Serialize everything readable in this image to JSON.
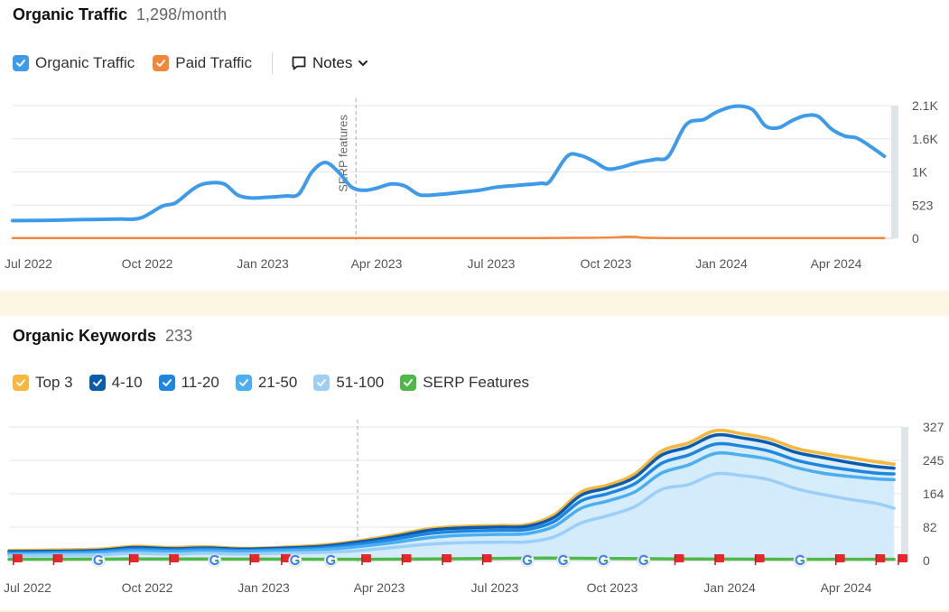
{
  "traffic": {
    "title": "Organic Traffic",
    "value": "1,298/month",
    "legend": [
      {
        "label": "Organic Traffic",
        "color": "#3d9be9",
        "checked": true
      },
      {
        "label": "Paid Traffic",
        "color": "#f4863a",
        "checked": true
      }
    ],
    "notes_label": "Notes"
  },
  "keywords": {
    "title": "Organic Keywords",
    "value": "233",
    "legend": [
      {
        "label": "Top 3",
        "color": "#f6b73c",
        "checked": true
      },
      {
        "label": "4-10",
        "color": "#0b5cad",
        "checked": true
      },
      {
        "label": "11-20",
        "color": "#1f86e0",
        "checked": true
      },
      {
        "label": "21-50",
        "color": "#4aaef0",
        "checked": true
      },
      {
        "label": "51-100",
        "color": "#9ccff7",
        "checked": true
      },
      {
        "label": "SERP Features",
        "color": "#50b848",
        "checked": true
      }
    ]
  },
  "chart_data": [
    {
      "type": "line",
      "title": "Organic Traffic",
      "x_ticks": [
        "Jul 2022",
        "Oct 2022",
        "Jan 2023",
        "Apr 2023",
        "Jul 2023",
        "Oct 2023",
        "Jan 2024",
        "Apr 2024"
      ],
      "y_ticks": [
        "0",
        "523",
        "1K",
        "1.6K",
        "2.1K"
      ],
      "ylim": [
        0,
        2100
      ],
      "grid": true,
      "annotation": {
        "label": "SERP features",
        "x": 0.39
      },
      "series": [
        {
          "name": "Organic Traffic",
          "color": "#3d9be9",
          "points": [
            [
              0,
              280
            ],
            [
              0.04,
              285
            ],
            [
              0.08,
              295
            ],
            [
              0.12,
              305
            ],
            [
              0.145,
              320
            ],
            [
              0.17,
              510
            ],
            [
              0.185,
              560
            ],
            [
              0.205,
              780
            ],
            [
              0.22,
              870
            ],
            [
              0.24,
              860
            ],
            [
              0.255,
              690
            ],
            [
              0.27,
              640
            ],
            [
              0.29,
              650
            ],
            [
              0.31,
              670
            ],
            [
              0.325,
              700
            ],
            [
              0.34,
              1050
            ],
            [
              0.355,
              1200
            ],
            [
              0.37,
              1050
            ],
            [
              0.385,
              810
            ],
            [
              0.4,
              760
            ],
            [
              0.415,
              800
            ],
            [
              0.43,
              860
            ],
            [
              0.445,
              830
            ],
            [
              0.46,
              700
            ],
            [
              0.47,
              680
            ],
            [
              0.49,
              700
            ],
            [
              0.51,
              730
            ],
            [
              0.53,
              760
            ],
            [
              0.55,
              810
            ],
            [
              0.575,
              840
            ],
            [
              0.6,
              870
            ],
            [
              0.61,
              900
            ],
            [
              0.63,
              1300
            ],
            [
              0.645,
              1310
            ],
            [
              0.66,
              1220
            ],
            [
              0.675,
              1100
            ],
            [
              0.69,
              1120
            ],
            [
              0.71,
              1200
            ],
            [
              0.73,
              1250
            ],
            [
              0.745,
              1300
            ],
            [
              0.765,
              1800
            ],
            [
              0.785,
              1880
            ],
            [
              0.8,
              2000
            ],
            [
              0.82,
              2090
            ],
            [
              0.84,
              2040
            ],
            [
              0.855,
              1780
            ],
            [
              0.87,
              1750
            ],
            [
              0.885,
              1860
            ],
            [
              0.9,
              1940
            ],
            [
              0.915,
              1930
            ],
            [
              0.93,
              1730
            ],
            [
              0.945,
              1620
            ],
            [
              0.96,
              1580
            ],
            [
              0.98,
              1400
            ],
            [
              0.99,
              1298
            ]
          ]
        },
        {
          "name": "Paid Traffic",
          "color": "#f4863a",
          "points": [
            [
              0,
              5
            ],
            [
              0.6,
              5
            ],
            [
              0.7,
              25
            ],
            [
              0.74,
              5
            ],
            [
              0.99,
              5
            ]
          ]
        }
      ]
    },
    {
      "type": "area",
      "title": "Organic Keywords",
      "x_ticks": [
        "Jul 2022",
        "Oct 2022",
        "Jan 2023",
        "Apr 2023",
        "Jul 2023",
        "Oct 2023",
        "Jan 2024",
        "Apr 2024"
      ],
      "y_ticks": [
        "0",
        "82",
        "164",
        "245",
        "327"
      ],
      "ylim": [
        0,
        327
      ],
      "grid": true,
      "annotation": {
        "label": "",
        "x": 0.39
      },
      "series": [
        {
          "name": "Top 3",
          "color": "#f6b73c",
          "points": [
            [
              0,
              25
            ],
            [
              0.05,
              26
            ],
            [
              0.1,
              28
            ],
            [
              0.14,
              35
            ],
            [
              0.18,
              32
            ],
            [
              0.22,
              34
            ],
            [
              0.26,
              30
            ],
            [
              0.3,
              32
            ],
            [
              0.35,
              38
            ],
            [
              0.39,
              48
            ],
            [
              0.43,
              62
            ],
            [
              0.47,
              78
            ],
            [
              0.51,
              84
            ],
            [
              0.55,
              86
            ],
            [
              0.58,
              88
            ],
            [
              0.61,
              112
            ],
            [
              0.64,
              168
            ],
            [
              0.67,
              185
            ],
            [
              0.7,
              212
            ],
            [
              0.73,
              268
            ],
            [
              0.76,
              288
            ],
            [
              0.79,
              318
            ],
            [
              0.82,
              310
            ],
            [
              0.85,
              298
            ],
            [
              0.88,
              275
            ],
            [
              0.91,
              262
            ],
            [
              0.94,
              252
            ],
            [
              0.97,
              242
            ],
            [
              0.99,
              236
            ]
          ]
        },
        {
          "name": "4-10",
          "color": "#0b5cad",
          "points": [
            [
              0,
              22
            ],
            [
              0.05,
              23
            ],
            [
              0.1,
              25
            ],
            [
              0.14,
              32
            ],
            [
              0.18,
              29
            ],
            [
              0.22,
              31
            ],
            [
              0.26,
              28
            ],
            [
              0.3,
              30
            ],
            [
              0.35,
              35
            ],
            [
              0.39,
              45
            ],
            [
              0.43,
              58
            ],
            [
              0.47,
              74
            ],
            [
              0.51,
              80
            ],
            [
              0.55,
              82
            ],
            [
              0.58,
              84
            ],
            [
              0.61,
              106
            ],
            [
              0.64,
              160
            ],
            [
              0.67,
              178
            ],
            [
              0.7,
              204
            ],
            [
              0.73,
              258
            ],
            [
              0.76,
              278
            ],
            [
              0.79,
              307
            ],
            [
              0.82,
              300
            ],
            [
              0.85,
              288
            ],
            [
              0.88,
              265
            ],
            [
              0.91,
              252
            ],
            [
              0.94,
              240
            ],
            [
              0.97,
              230
            ],
            [
              0.99,
              226
            ]
          ]
        },
        {
          "name": "11-20",
          "color": "#1f86e0",
          "points": [
            [
              0,
              19
            ],
            [
              0.05,
              20
            ],
            [
              0.1,
              22
            ],
            [
              0.14,
              28
            ],
            [
              0.18,
              26
            ],
            [
              0.22,
              28
            ],
            [
              0.26,
              25
            ],
            [
              0.3,
              27
            ],
            [
              0.35,
              31
            ],
            [
              0.39,
              40
            ],
            [
              0.43,
              52
            ],
            [
              0.47,
              66
            ],
            [
              0.51,
              72
            ],
            [
              0.55,
              74
            ],
            [
              0.58,
              76
            ],
            [
              0.61,
              96
            ],
            [
              0.64,
              146
            ],
            [
              0.67,
              164
            ],
            [
              0.7,
              188
            ],
            [
              0.73,
              238
            ],
            [
              0.76,
              258
            ],
            [
              0.79,
              285
            ],
            [
              0.82,
              280
            ],
            [
              0.85,
              268
            ],
            [
              0.88,
              246
            ],
            [
              0.91,
              232
            ],
            [
              0.94,
              222
            ],
            [
              0.97,
              214
            ],
            [
              0.99,
              212
            ]
          ]
        },
        {
          "name": "21-50",
          "color": "#4aaef0",
          "points": [
            [
              0,
              16
            ],
            [
              0.05,
              17
            ],
            [
              0.1,
              19
            ],
            [
              0.14,
              24
            ],
            [
              0.18,
              22
            ],
            [
              0.22,
              24
            ],
            [
              0.26,
              22
            ],
            [
              0.3,
              24
            ],
            [
              0.35,
              27
            ],
            [
              0.39,
              34
            ],
            [
              0.43,
              44
            ],
            [
              0.47,
              56
            ],
            [
              0.51,
              62
            ],
            [
              0.55,
              64
            ],
            [
              0.58,
              66
            ],
            [
              0.61,
              84
            ],
            [
              0.64,
              128
            ],
            [
              0.67,
              146
            ],
            [
              0.7,
              168
            ],
            [
              0.73,
              214
            ],
            [
              0.76,
              234
            ],
            [
              0.79,
              262
            ],
            [
              0.82,
              258
            ],
            [
              0.85,
              248
            ],
            [
              0.88,
              228
            ],
            [
              0.91,
              214
            ],
            [
              0.94,
              206
            ],
            [
              0.97,
              200
            ],
            [
              0.99,
              198
            ]
          ]
        },
        {
          "name": "51-100",
          "color": "#9ccff7",
          "points": [
            [
              0,
              12
            ],
            [
              0.05,
              13
            ],
            [
              0.1,
              14
            ],
            [
              0.14,
              18
            ],
            [
              0.18,
              16
            ],
            [
              0.22,
              18
            ],
            [
              0.26,
              16
            ],
            [
              0.3,
              18
            ],
            [
              0.35,
              20
            ],
            [
              0.39,
              24
            ],
            [
              0.43,
              32
            ],
            [
              0.47,
              40
            ],
            [
              0.51,
              44
            ],
            [
              0.55,
              45
            ],
            [
              0.58,
              46
            ],
            [
              0.61,
              58
            ],
            [
              0.64,
              92
            ],
            [
              0.67,
              110
            ],
            [
              0.7,
              132
            ],
            [
              0.73,
              174
            ],
            [
              0.76,
              186
            ],
            [
              0.79,
              212
            ],
            [
              0.82,
              208
            ],
            [
              0.85,
              198
            ],
            [
              0.88,
              176
            ],
            [
              0.91,
              162
            ],
            [
              0.94,
              150
            ],
            [
              0.97,
              140
            ],
            [
              0.99,
              128
            ]
          ]
        },
        {
          "name": "SERP Features",
          "color": "#50b848",
          "points": [
            [
              0,
              3
            ],
            [
              0.2,
              4
            ],
            [
              0.4,
              3
            ],
            [
              0.6,
              6
            ],
            [
              0.75,
              4
            ],
            [
              0.9,
              3
            ],
            [
              0.99,
              3
            ]
          ]
        }
      ],
      "markers": {
        "flags": [
          0.01,
          0.055,
          0.14,
          0.185,
          0.275,
          0.31,
          0.4,
          0.445,
          0.49,
          0.535,
          0.75,
          0.795,
          0.84,
          0.93,
          0.975,
          1.0
        ],
        "google": [
          0.1,
          0.23,
          0.32,
          0.36,
          0.58,
          0.62,
          0.665,
          0.71,
          0.885
        ]
      }
    }
  ]
}
